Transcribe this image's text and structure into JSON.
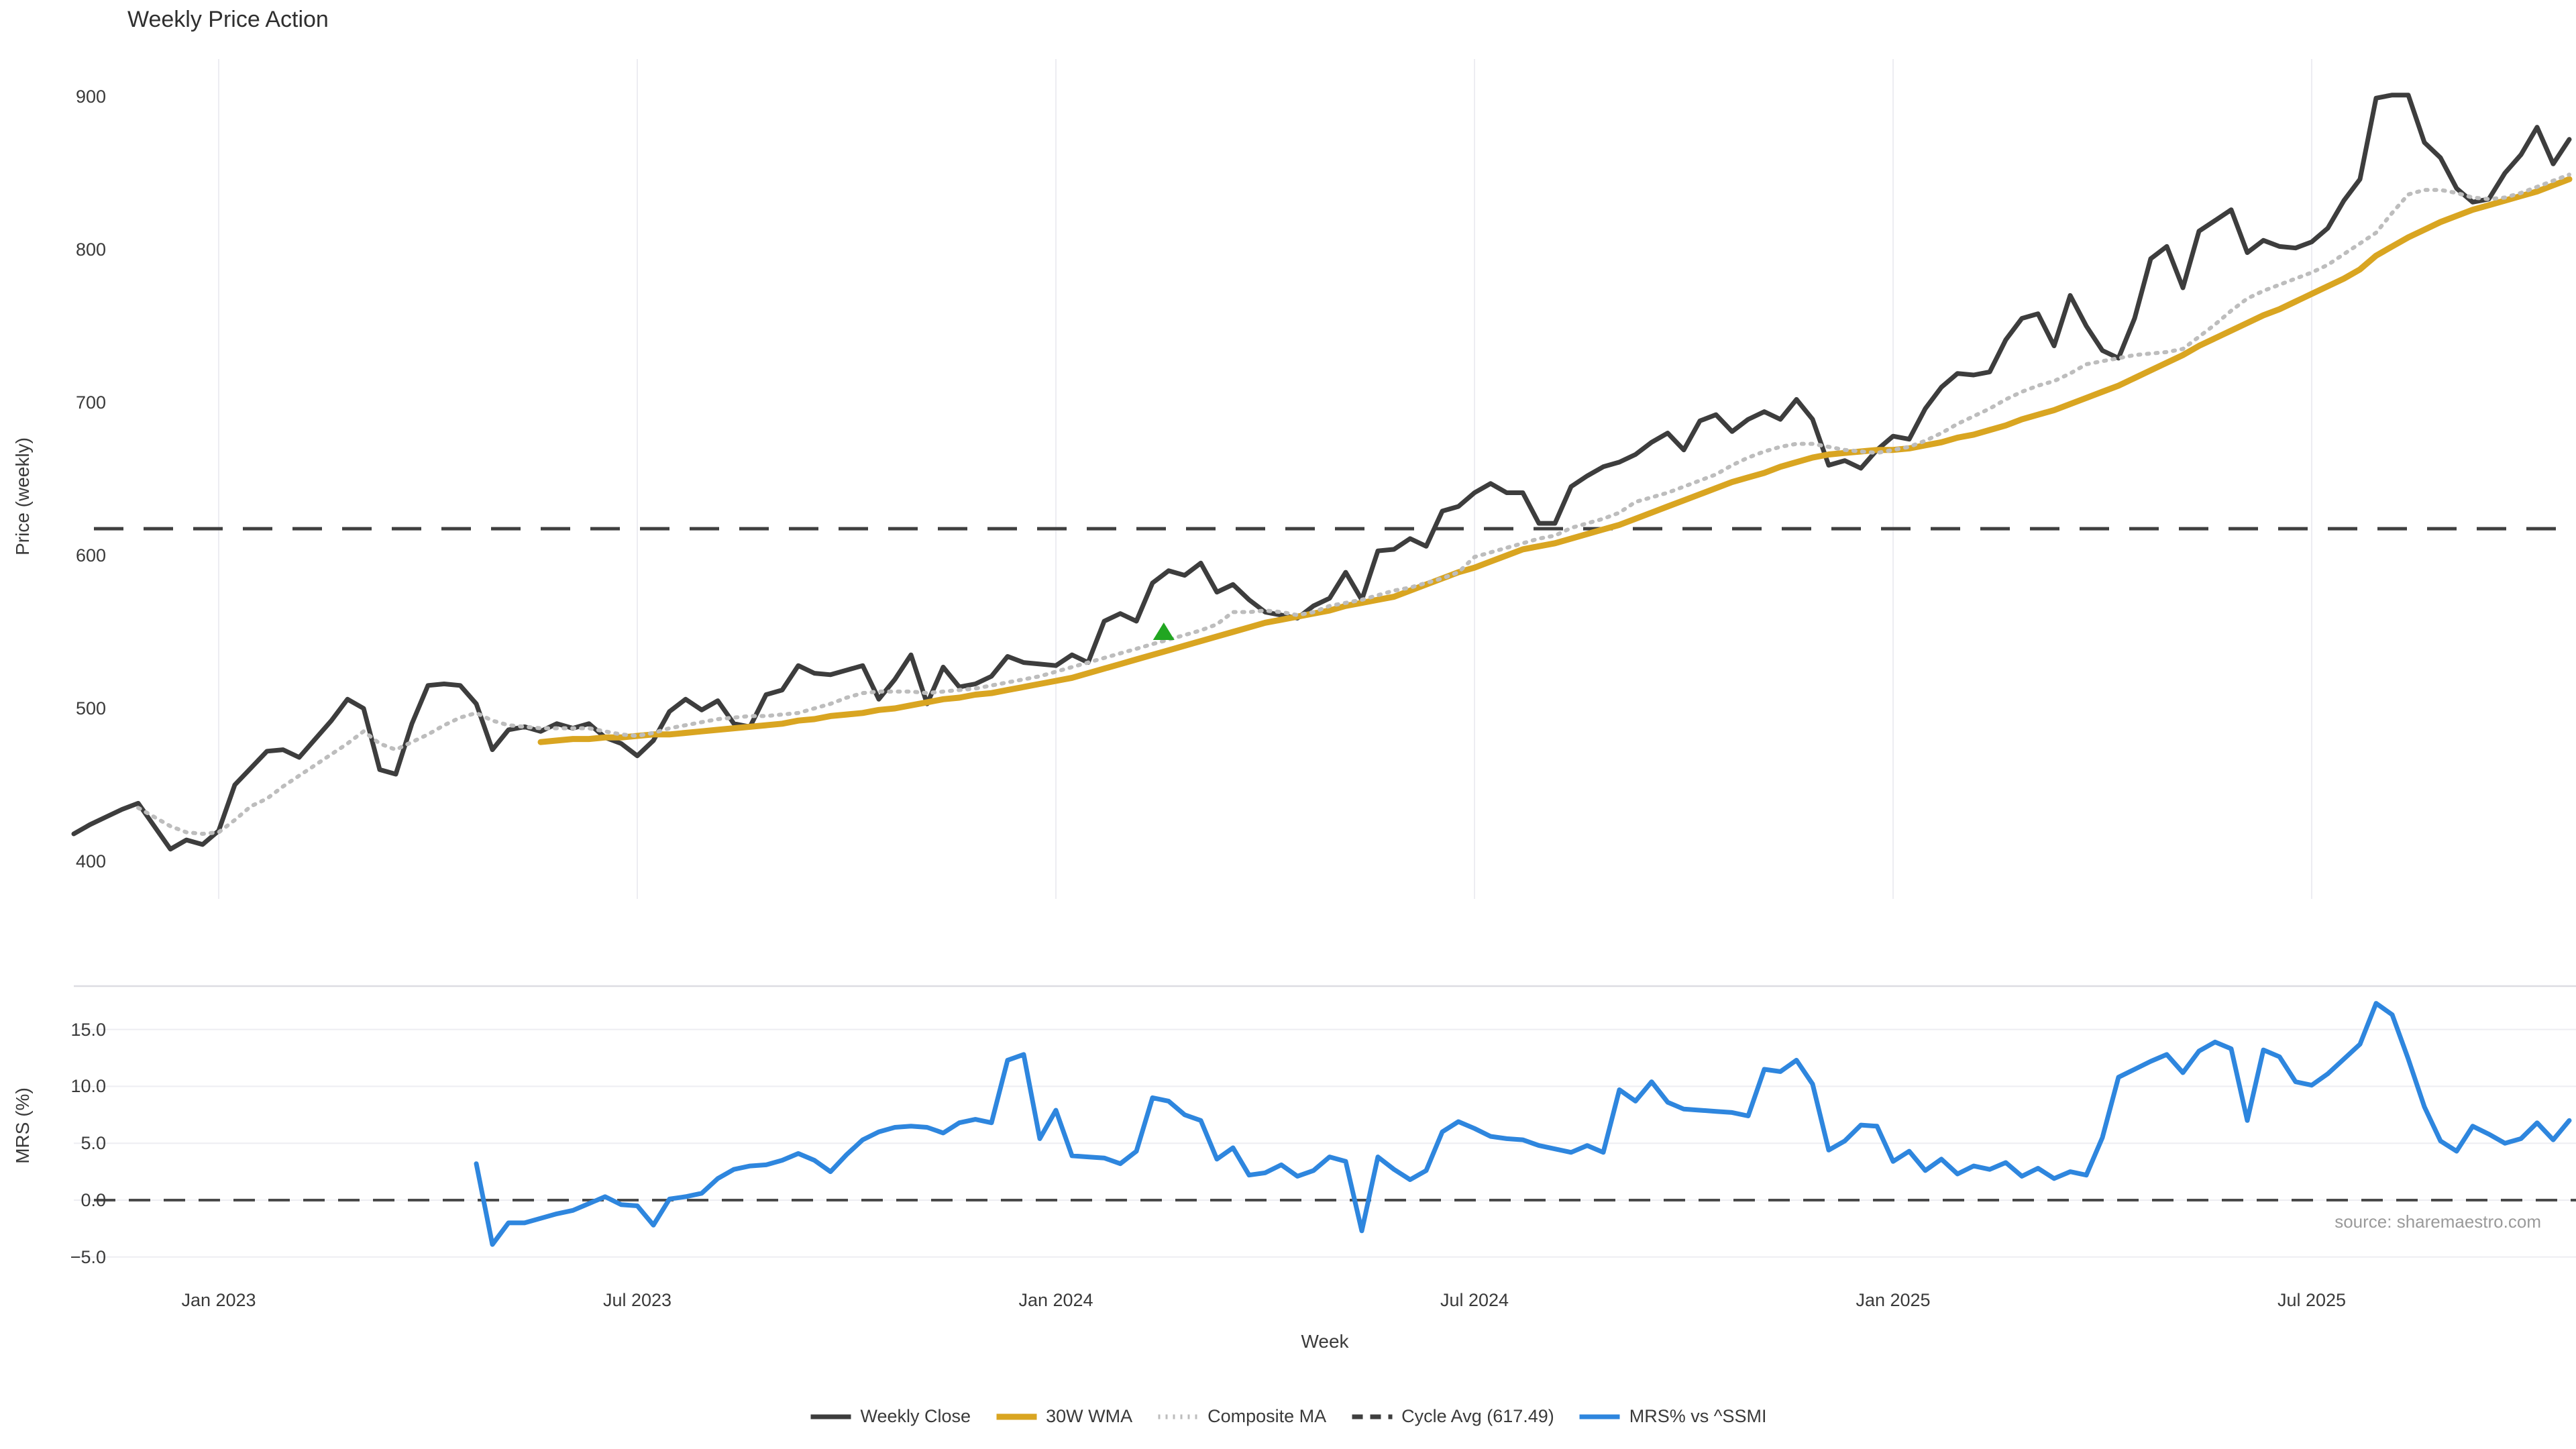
{
  "title": "Weekly Price Action",
  "source": "source: sharemaestro.com",
  "chart_data": {
    "type": "line",
    "title": "Weekly Price Action",
    "x_axis": {
      "label": "Week",
      "unit": "weekly",
      "ticks": [
        {
          "label": "Jan 2023",
          "week": 9
        },
        {
          "label": "Jul 2023",
          "week": 35
        },
        {
          "label": "Jan 2024",
          "week": 61
        },
        {
          "label": "Jul 2024",
          "week": 87
        },
        {
          "label": "Jan 2025",
          "week": 113
        },
        {
          "label": "Jul 2025",
          "week": 139
        }
      ],
      "weeks_total": 156
    },
    "colors": {
      "close": "#3d3d3d",
      "wma": "#D9A521",
      "composite": "#bdbdbd",
      "cycle_avg": "#3f3f3f",
      "mrs": "#2E86DE",
      "marker": "#21A621",
      "grid": "#ededf2",
      "panel_border": "#dcdce2",
      "zero_line": "#4a4a4a"
    },
    "panels": [
      {
        "id": "price",
        "ylabel": "Price (weekly)",
        "ylim": [
          378,
          922
        ],
        "yticks": [
          {
            "label": "400",
            "value": 400
          },
          {
            "label": "500",
            "value": 500
          },
          {
            "label": "600",
            "value": 600
          },
          {
            "label": "700",
            "value": 700
          },
          {
            "label": "800",
            "value": 800
          },
          {
            "label": "900",
            "value": 900
          }
        ],
        "reference_line": {
          "name": "Cycle Avg",
          "value": 617.49,
          "style": "dashed"
        },
        "marker": {
          "type": "triangle-up",
          "week": 67.7,
          "value": 550,
          "meaning": "buy-signal"
        },
        "series": [
          {
            "name": "Weekly Close",
            "style": "solid",
            "color_key": "close",
            "start_week": 0,
            "values": [
              418,
              424,
              429,
              434,
              438,
              423,
              408,
              414,
              411,
              420,
              450,
              461,
              472,
              473,
              468,
              480,
              492,
              506,
              500,
              460,
              457,
              490,
              515,
              516,
              515,
              503,
              473,
              486,
              488,
              485,
              490,
              487,
              490,
              481,
              477,
              469,
              479,
              498,
              506,
              499,
              505,
              490,
              488,
              509,
              512,
              528,
              523,
              522,
              525,
              528,
              506,
              519,
              535,
              503,
              527,
              514,
              516,
              521,
              534,
              530,
              529,
              528,
              535,
              530,
              557,
              562,
              557,
              582,
              590,
              587,
              595,
              576,
              581,
              571,
              563,
              561,
              559,
              567,
              572,
              589,
              571,
              603,
              604,
              611,
              606,
              629,
              632,
              641,
              647,
              641,
              641,
              621,
              621,
              645,
              652,
              658,
              661,
              666,
              674,
              680,
              669,
              688,
              692,
              681,
              689,
              694,
              689,
              702,
              689,
              659,
              662,
              657,
              669,
              678,
              676,
              696,
              710,
              719,
              718,
              720,
              741,
              755,
              758,
              737,
              770,
              750,
              734,
              729,
              755,
              794,
              802,
              775,
              812,
              819,
              826,
              798,
              806,
              802,
              801,
              805,
              814,
              832,
              846,
              899,
              901,
              901,
              870,
              860,
              840,
              831,
              833,
              850,
              862,
              880,
              856,
              872
            ]
          },
          {
            "name": "30W WMA",
            "style": "solid",
            "color_key": "wma",
            "start_week": 29,
            "values": [
              478,
              479,
              480,
              480,
              481,
              481,
              482,
              483,
              483,
              484,
              485,
              486,
              487,
              488,
              489,
              490,
              492,
              493,
              495,
              496,
              497,
              499,
              500,
              502,
              504,
              506,
              507,
              509,
              510,
              512,
              514,
              516,
              518,
              520,
              523,
              526,
              529,
              532,
              535,
              538,
              541,
              544,
              547,
              550,
              553,
              556,
              558,
              560,
              562,
              564,
              567,
              569,
              571,
              573,
              577,
              581,
              585,
              589,
              592,
              596,
              600,
              604,
              606,
              608,
              611,
              614,
              617,
              620,
              624,
              628,
              632,
              636,
              640,
              644,
              648,
              651,
              654,
              658,
              661,
              664,
              666,
              667,
              668,
              669,
              669,
              670,
              672,
              674,
              677,
              679,
              682,
              685,
              689,
              692,
              695,
              699,
              703,
              707,
              711,
              716,
              721,
              726,
              731,
              737,
              742,
              747,
              752,
              757,
              761,
              766,
              771,
              776,
              781,
              787,
              796,
              802,
              808,
              813,
              818,
              822,
              826,
              829,
              832,
              835,
              838,
              842,
              846
            ]
          },
          {
            "name": "Composite MA",
            "style": "dotted",
            "color_key": "composite",
            "start_week": 4,
            "values": [
              435,
              429,
              423,
              419,
              418,
              419,
              427,
              436,
              441,
              449,
              456,
              463,
              470,
              477,
              485,
              477,
              473,
              478,
              483,
              489,
              494,
              497,
              492,
              489,
              488,
              487,
              487,
              487,
              487,
              485,
              483,
              482,
              484,
              487,
              489,
              491,
              493,
              494,
              495,
              495,
              496,
              497,
              500,
              503,
              507,
              510,
              511,
              511,
              511,
              510,
              511,
              512,
              513,
              515,
              517,
              519,
              521,
              524,
              527,
              530,
              533,
              536,
              539,
              542,
              545,
              548,
              551,
              555,
              563,
              563,
              564,
              563,
              561,
              563,
              567,
              569,
              571,
              574,
              577,
              579,
              582,
              585,
              589,
              599,
              602,
              605,
              608,
              611,
              613,
              618,
              621,
              624,
              628,
              635,
              638,
              641,
              645,
              649,
              653,
              659,
              664,
              668,
              671,
              673,
              673,
              671,
              669,
              668,
              667,
              669,
              671,
              675,
              680,
              686,
              691,
              696,
              702,
              707,
              711,
              714,
              719,
              725,
              727,
              729,
              731,
              732,
              733,
              735,
              743,
              751,
              760,
              768,
              773,
              777,
              781,
              785,
              790,
              797,
              804,
              811,
              824,
              836,
              839,
              839,
              837,
              834,
              833,
              834,
              837,
              841,
              845,
              849
            ]
          }
        ]
      },
      {
        "id": "mrs",
        "ylabel": "MRS (%)",
        "ylim": [
          -7.6,
          18.8
        ],
        "yticks": [
          {
            "label": "−5.0",
            "value": -5
          },
          {
            "label": "0.0",
            "value": 0
          },
          {
            "label": "5.0",
            "value": 5
          },
          {
            "label": "10.0",
            "value": 10
          },
          {
            "label": "15.0",
            "value": 15
          }
        ],
        "reference_line": {
          "name": "zero",
          "value": 0,
          "style": "dashed"
        },
        "series": [
          {
            "name": "MRS% vs ^SSMI",
            "style": "solid",
            "color_key": "mrs",
            "start_week": 25,
            "values": [
              3.2,
              -3.9,
              -2.0,
              -2.0,
              -1.6,
              -1.2,
              -0.9,
              -0.3,
              0.3,
              -0.4,
              -0.5,
              -2.2,
              0.1,
              0.3,
              0.6,
              1.9,
              2.7,
              3.0,
              3.1,
              3.5,
              4.1,
              3.5,
              2.5,
              4.0,
              5.3,
              6.0,
              6.4,
              6.5,
              6.4,
              5.9,
              6.8,
              7.1,
              6.8,
              12.3,
              12.8,
              5.4,
              7.9,
              3.9,
              3.8,
              3.7,
              3.2,
              4.3,
              9.0,
              8.7,
              7.5,
              7.0,
              3.6,
              4.6,
              2.2,
              2.4,
              3.1,
              2.1,
              2.6,
              3.8,
              3.4,
              -2.7,
              3.8,
              2.7,
              1.8,
              2.6,
              6.0,
              6.9,
              6.3,
              5.6,
              5.4,
              5.3,
              4.8,
              4.5,
              4.2,
              4.8,
              4.2,
              9.7,
              8.7,
              10.4,
              8.6,
              8.0,
              7.9,
              7.8,
              7.7,
              7.4,
              11.5,
              11.3,
              12.3,
              10.2,
              4.4,
              5.2,
              6.6,
              6.5,
              3.4,
              4.3,
              2.6,
              3.6,
              2.3,
              3.0,
              2.7,
              3.3,
              2.1,
              2.8,
              1.9,
              2.5,
              2.2,
              5.5,
              10.8,
              11.5,
              12.2,
              12.8,
              11.2,
              13.1,
              13.9,
              13.3,
              7.0,
              13.2,
              12.6,
              10.4,
              10.1,
              11.1,
              12.4,
              13.7,
              17.3,
              16.3,
              12.4,
              8.2,
              5.2,
              4.3,
              6.5,
              5.8,
              5.0,
              5.4,
              6.8,
              5.3,
              7.0
            ]
          }
        ]
      }
    ],
    "legend": [
      {
        "label": "Weekly Close",
        "style": "solid",
        "color_key": "close"
      },
      {
        "label": "30W WMA",
        "style": "solid",
        "color_key": "wma"
      },
      {
        "label": "Composite MA",
        "style": "dotted",
        "color_key": "composite"
      },
      {
        "label": "Cycle Avg (617.49)",
        "style": "dashed",
        "color_key": "cycle_avg"
      },
      {
        "label": "MRS% vs ^SSMI",
        "style": "solid",
        "color_key": "mrs"
      }
    ]
  }
}
